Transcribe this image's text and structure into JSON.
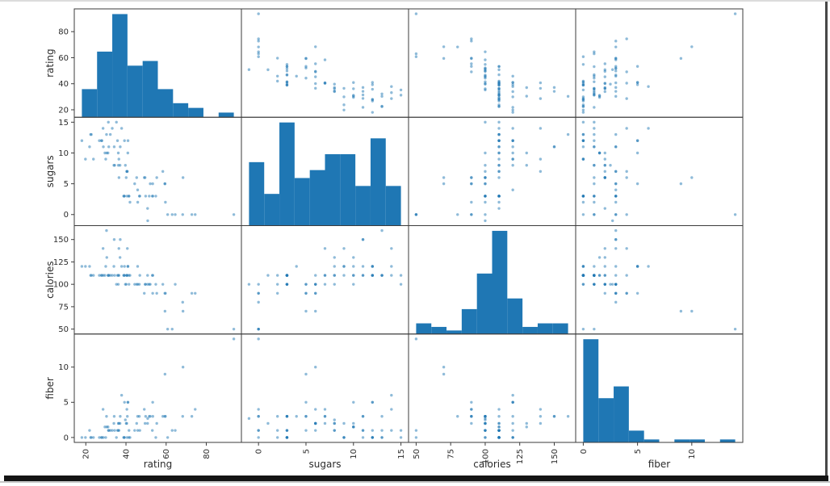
{
  "figure": {
    "background": "#ffffff",
    "frame": {
      "top_border": "#dcdcdc",
      "right_border": "#474747",
      "bottom_shadow": "#141414",
      "bottom_line": "#c7c7c7"
    }
  },
  "chart_data": {
    "type": "scatter_matrix",
    "bins": 10,
    "grid": false,
    "marker_color": "#1f77b4",
    "marker_opacity": 0.5,
    "hist_color": "#1f77b4",
    "axis_line_color": "#3b3b3b",
    "tick_label_fontsize": 10,
    "axis_label_fontsize": 12,
    "variables": [
      {
        "name": "rating",
        "ticks": [
          20,
          40,
          60,
          80
        ],
        "values": [
          68.4,
          33.98,
          59.43,
          93.7,
          34.38,
          29.51,
          33.17,
          37.04,
          49.12,
          53.31,
          18.04,
          50.76,
          19.82,
          40.4,
          22.74,
          41.45,
          45.86,
          35.78,
          22.4,
          40.45,
          64.53,
          46.9,
          36.18,
          44.33,
          32.21,
          31.44,
          58.35,
          40.92,
          41.01,
          28.03,
          35.25,
          23.8,
          52.08,
          53.37,
          45.81,
          21.87,
          31.07,
          28.74,
          36.52,
          36.47,
          39.24,
          45.33,
          26.73,
          54.85,
          37.14,
          34.14,
          30.31,
          40.11,
          29.92,
          40.69,
          59.64,
          30.45,
          37.84,
          41.5,
          60.76,
          63.01,
          49.51,
          50.83,
          39.26,
          39.7,
          55.33,
          41.99,
          40.56,
          68.24,
          74.47,
          72.8,
          31.23,
          53.13,
          59.36,
          38.84,
          28.59,
          46.66,
          39.11,
          27.75,
          49.79,
          51.59,
          36.19
        ]
      },
      {
        "name": "sugars",
        "ticks": [
          0,
          5,
          10,
          15
        ],
        "values": [
          6,
          8,
          5,
          0,
          8,
          10,
          14,
          8,
          6,
          5,
          12,
          1,
          9,
          7,
          13,
          3,
          2,
          12,
          13,
          7,
          0,
          3,
          10,
          5,
          13,
          11,
          7,
          10,
          12,
          12,
          15,
          9,
          5,
          3,
          4,
          11,
          10,
          11,
          6,
          9,
          3,
          6,
          12,
          3,
          11,
          11,
          13,
          6,
          9,
          7,
          2,
          10,
          14,
          3,
          0,
          0,
          6,
          -1,
          12,
          8,
          6,
          2,
          3,
          0,
          0,
          0,
          15,
          3,
          5,
          3,
          14,
          3,
          3,
          12,
          3,
          3,
          8
        ]
      },
      {
        "name": "calories",
        "ticks": [
          50,
          75,
          100,
          125,
          150
        ],
        "values": [
          70,
          120,
          70,
          50,
          110,
          110,
          110,
          130,
          90,
          90,
          120,
          110,
          120,
          110,
          110,
          110,
          100,
          110,
          110,
          110,
          100,
          110,
          100,
          100,
          110,
          110,
          100,
          120,
          120,
          110,
          100,
          110,
          100,
          110,
          120,
          120,
          110,
          110,
          110,
          140,
          110,
          100,
          110,
          100,
          150,
          150,
          160,
          100,
          120,
          140,
          90,
          130,
          120,
          100,
          50,
          50,
          100,
          100,
          120,
          100,
          90,
          110,
          110,
          80,
          90,
          90,
          110,
          110,
          90,
          110,
          140,
          100,
          110,
          110,
          100,
          100,
          110
        ]
      },
      {
        "name": "fiber",
        "ticks": [
          0,
          5,
          10
        ],
        "values": [
          10,
          2,
          9,
          14,
          1,
          1.5,
          1,
          2,
          4,
          5,
          0,
          2,
          0,
          2,
          0,
          0,
          1,
          1,
          0,
          4,
          1,
          1,
          2,
          1,
          1,
          1,
          3,
          5,
          5,
          0,
          0,
          0,
          3,
          3,
          3,
          1,
          1.5,
          0,
          1,
          2,
          0,
          2,
          0,
          0,
          3,
          3,
          3,
          2,
          0,
          3,
          3,
          1.5,
          6,
          1,
          0,
          1,
          2,
          2.7,
          5,
          2.5,
          2,
          0,
          0,
          3,
          4,
          3,
          1,
          1,
          3,
          0,
          4,
          3,
          0,
          0,
          3,
          3,
          1
        ]
      }
    ]
  }
}
